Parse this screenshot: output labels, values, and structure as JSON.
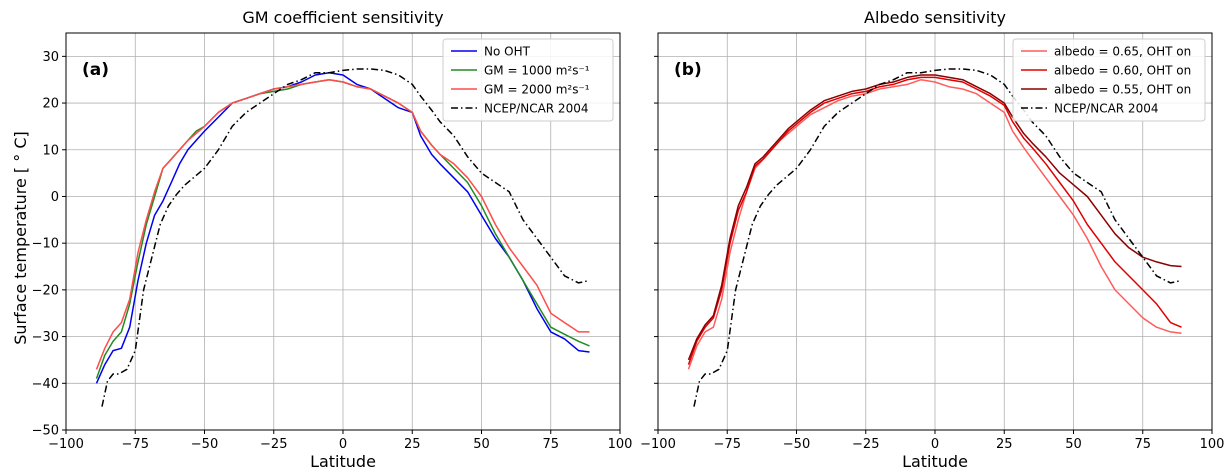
{
  "figure": {
    "ylabel": "Surface temperature [$^\\circ C$]",
    "ylabel_display": "Surface temperature [ ° C]"
  },
  "chart_data": [
    {
      "type": "line",
      "title": "GM coefficient sensitivity",
      "panel_label": "(a)",
      "xlabel": "Latitude",
      "ylabel": "Surface temperature [ ° C]",
      "xlim": [
        -100,
        100
      ],
      "ylim": [
        -50,
        35
      ],
      "xticks": [
        -100,
        -75,
        -50,
        -25,
        0,
        25,
        50,
        75,
        100
      ],
      "yticks": [
        -50,
        -40,
        -30,
        -20,
        -10,
        0,
        10,
        20,
        30
      ],
      "grid": true,
      "legend_position": "top-right",
      "series": [
        {
          "name": "No OHT",
          "color": "#0000ee",
          "style": "solid",
          "x": [
            -89,
            -86,
            -83,
            -80,
            -77,
            -74,
            -71,
            -68,
            -65,
            -62,
            -59,
            -56,
            -53,
            -50,
            -45,
            -40,
            -35,
            -30,
            -25,
            -20,
            -15,
            -10,
            -5,
            0,
            5,
            10,
            15,
            20,
            25,
            28,
            32,
            35,
            40,
            45,
            50,
            55,
            60,
            65,
            70,
            75,
            80,
            85,
            89
          ],
          "y": [
            -40,
            -36,
            -33,
            -32.5,
            -28,
            -18,
            -10,
            -4,
            -1,
            3,
            7,
            10,
            12,
            14,
            17,
            20,
            21,
            22,
            23,
            23.5,
            24.5,
            26,
            26.5,
            26,
            24,
            23,
            21,
            19,
            18,
            13,
            9,
            7,
            4,
            1,
            -4,
            -9,
            -13,
            -18,
            -24,
            -29,
            -30.5,
            -33,
            -33.3
          ]
        },
        {
          "name": "GM = 1000 m²s⁻¹",
          "color": "#228b22",
          "style": "solid",
          "x": [
            -89,
            -86,
            -83,
            -80,
            -77,
            -74,
            -71,
            -68,
            -65,
            -62,
            -59,
            -56,
            -53,
            -50,
            -45,
            -40,
            -35,
            -30,
            -25,
            -20,
            -15,
            -10,
            -5,
            0,
            5,
            10,
            15,
            20,
            25,
            28,
            32,
            35,
            40,
            45,
            50,
            55,
            60,
            65,
            70,
            75,
            80,
            85,
            89
          ],
          "y": [
            -39,
            -34,
            -31,
            -29,
            -23,
            -14,
            -6,
            0,
            6,
            8,
            10,
            12,
            14,
            15,
            18,
            20,
            21,
            22,
            22.5,
            23,
            24,
            24.5,
            25,
            24.5,
            23.5,
            23,
            21.5,
            20,
            18,
            14,
            11,
            9,
            6,
            3,
            -2,
            -8,
            -13,
            -18,
            -23,
            -28,
            -29.5,
            -31,
            -32
          ]
        },
        {
          "name": "GM = 2000 m²s⁻¹",
          "color": "#ff4c4c",
          "style": "solid",
          "x": [
            -89,
            -86,
            -83,
            -80,
            -77,
            -74,
            -71,
            -68,
            -65,
            -62,
            -59,
            -56,
            -53,
            -50,
            -45,
            -40,
            -35,
            -30,
            -25,
            -20,
            -15,
            -10,
            -5,
            0,
            5,
            10,
            15,
            20,
            25,
            28,
            32,
            35,
            40,
            45,
            50,
            55,
            60,
            65,
            70,
            75,
            80,
            85,
            89
          ],
          "y": [
            -37,
            -32.5,
            -29,
            -27,
            -22,
            -12,
            -5,
            1,
            6,
            8,
            10,
            12,
            13.5,
            15,
            18,
            20,
            21,
            22,
            23,
            23.5,
            24,
            24.5,
            25,
            24.5,
            23.5,
            23,
            21.5,
            20,
            18,
            14,
            11,
            9,
            7,
            4,
            0,
            -6,
            -11,
            -15,
            -19,
            -25,
            -27,
            -29,
            -29
          ]
        },
        {
          "name": "NCEP/NCAR 2004",
          "color": "#000000",
          "style": "dashdot",
          "x": [
            -87,
            -85,
            -83,
            -81,
            -78,
            -75,
            -72,
            -69,
            -66,
            -63,
            -60,
            -57,
            -54,
            -50,
            -45,
            -40,
            -35,
            -30,
            -25,
            -20,
            -15,
            -10,
            -5,
            0,
            5,
            10,
            15,
            20,
            25,
            28,
            32,
            35,
            40,
            45,
            50,
            55,
            60,
            65,
            70,
            75,
            80,
            85,
            89
          ],
          "y": [
            -45,
            -39.5,
            -38,
            -38,
            -37,
            -33,
            -20,
            -13,
            -6,
            -2,
            0.5,
            2.5,
            4,
            6,
            10,
            15,
            18,
            20,
            22,
            24,
            25,
            26.5,
            26.5,
            27,
            27.3,
            27.3,
            27,
            26,
            24,
            21.5,
            18.5,
            16,
            13,
            8.5,
            5,
            3,
            1,
            -5,
            -9,
            -13,
            -17,
            -18.5,
            -18
          ]
        }
      ]
    },
    {
      "type": "line",
      "title": "Albedo sensitivity",
      "panel_label": "(b)",
      "xlabel": "Latitude",
      "ylabel": "",
      "xlim": [
        -100,
        100
      ],
      "ylim": [
        -50,
        35
      ],
      "xticks": [
        -100,
        -75,
        -50,
        -25,
        0,
        25,
        50,
        75,
        100
      ],
      "yticks": [
        -50,
        -40,
        -30,
        -20,
        -10,
        0,
        10,
        20,
        30
      ],
      "ytick_labels_shown": false,
      "grid": true,
      "legend_position": "top-right",
      "series": [
        {
          "name": "albedo = 0.65, OHT on",
          "color": "#ff5c5c",
          "style": "solid",
          "x": [
            -89,
            -86,
            -83,
            -80,
            -77,
            -74,
            -71,
            -68,
            -65,
            -62,
            -59,
            -56,
            -53,
            -50,
            -45,
            -40,
            -35,
            -30,
            -25,
            -20,
            -15,
            -10,
            -5,
            0,
            5,
            10,
            15,
            20,
            25,
            28,
            32,
            35,
            40,
            45,
            50,
            55,
            60,
            65,
            70,
            75,
            80,
            85,
            89
          ],
          "y": [
            -37,
            -32,
            -29,
            -28,
            -22,
            -12,
            -5,
            1,
            6,
            8,
            10,
            12,
            13.5,
            15,
            17.5,
            19,
            20.5,
            21.5,
            22,
            23,
            23.5,
            24,
            25,
            24.5,
            23.5,
            23,
            22,
            20,
            18,
            14,
            10.5,
            8,
            4,
            0,
            -4,
            -9,
            -15,
            -20,
            -23,
            -26,
            -28,
            -29,
            -29.3
          ]
        },
        {
          "name": "albedo = 0.60, OHT on",
          "color": "#e00000",
          "style": "solid",
          "x": [
            -89,
            -86,
            -83,
            -80,
            -77,
            -74,
            -71,
            -68,
            -65,
            -62,
            -59,
            -56,
            -53,
            -50,
            -45,
            -40,
            -35,
            -30,
            -25,
            -20,
            -15,
            -10,
            -5,
            0,
            5,
            10,
            15,
            20,
            25,
            28,
            32,
            35,
            40,
            45,
            50,
            55,
            60,
            65,
            70,
            75,
            80,
            85,
            89
          ],
          "y": [
            -36,
            -31,
            -28,
            -26,
            -20,
            -10,
            -3,
            1,
            6.5,
            8,
            10,
            12,
            14,
            15.5,
            18,
            20,
            21,
            22,
            22.5,
            23.5,
            24,
            25,
            25.5,
            25.5,
            25,
            24.5,
            23,
            21.5,
            19.5,
            16,
            12.5,
            10.5,
            7,
            3,
            -1,
            -6,
            -10,
            -14,
            -17,
            -20,
            -23,
            -27,
            -28
          ]
        },
        {
          "name": "albedo = 0.55, OHT on",
          "color": "#8b0000",
          "style": "solid",
          "x": [
            -89,
            -86,
            -83,
            -80,
            -77,
            -74,
            -71,
            -68,
            -65,
            -62,
            -59,
            -56,
            -53,
            -50,
            -45,
            -40,
            -35,
            -30,
            -25,
            -20,
            -15,
            -10,
            -5,
            0,
            5,
            10,
            15,
            20,
            25,
            28,
            32,
            35,
            40,
            45,
            50,
            55,
            60,
            65,
            70,
            75,
            80,
            85,
            89
          ],
          "y": [
            -35,
            -30.5,
            -27.5,
            -25.5,
            -19,
            -9,
            -2,
            2,
            7,
            8.5,
            10.5,
            12.5,
            14.5,
            16,
            18.5,
            20.5,
            21.5,
            22.5,
            23,
            24,
            24.5,
            25.5,
            26,
            26,
            25.5,
            25,
            23.5,
            22,
            20,
            17,
            13.5,
            11.5,
            8.5,
            5,
            2.5,
            0,
            -4,
            -8,
            -11,
            -13,
            -14,
            -14.8,
            -15
          ]
        },
        {
          "name": "NCEP/NCAR 2004",
          "color": "#000000",
          "style": "dashdot",
          "x": [
            -87,
            -85,
            -83,
            -81,
            -78,
            -75,
            -72,
            -69,
            -66,
            -63,
            -60,
            -57,
            -54,
            -50,
            -45,
            -40,
            -35,
            -30,
            -25,
            -20,
            -15,
            -10,
            -5,
            0,
            5,
            10,
            15,
            20,
            25,
            28,
            32,
            35,
            40,
            45,
            50,
            55,
            60,
            65,
            70,
            75,
            80,
            85,
            89
          ],
          "y": [
            -45,
            -39.5,
            -38,
            -38,
            -37,
            -33,
            -20,
            -13,
            -6,
            -2,
            0.5,
            2.5,
            4,
            6,
            10,
            15,
            18,
            20,
            22,
            24,
            25,
            26.5,
            26.5,
            27,
            27.3,
            27.3,
            27,
            26,
            24,
            21.5,
            18.5,
            16,
            13,
            8.5,
            5,
            3,
            1,
            -5,
            -9,
            -13,
            -17,
            -18.5,
            -18
          ]
        }
      ]
    }
  ]
}
